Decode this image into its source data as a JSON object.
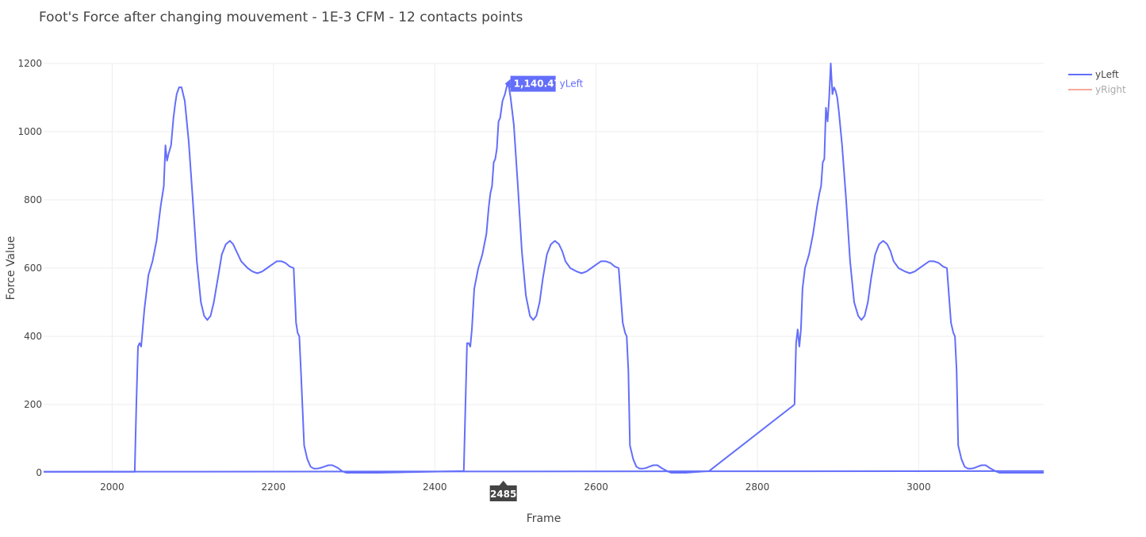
{
  "chart_data": {
    "type": "line",
    "title": "Foot's Force after changing mouvement - 1E-3 CFM - 12 contacts points",
    "xlabel": "Frame",
    "ylabel": "Force Value",
    "xlim": [
      1915,
      3155
    ],
    "ylim": [
      0,
      1200
    ],
    "xticks": [
      2000,
      2200,
      2400,
      2600,
      2800,
      3000
    ],
    "yticks": [
      0,
      200,
      400,
      600,
      800,
      1000,
      1200
    ],
    "ytick_labels": [
      "0",
      "200",
      "400",
      "600",
      "800",
      "1000",
      "1200"
    ],
    "grid": true,
    "legend_position": "top-right",
    "series": [
      {
        "name": "yLeft",
        "color": "#636efa",
        "visible": true,
        "x": [
          1915,
          2028,
          2030,
          2032,
          2034,
          2036,
          2040,
          2045,
          2050,
          2055,
          2058,
          2060,
          2062,
          2064,
          2066,
          2068,
          2070,
          2073,
          2076,
          2078,
          2080,
          2083,
          2086,
          2090,
          2095,
          2100,
          2105,
          2110,
          2114,
          2118,
          2122,
          2126,
          2131,
          2136,
          2141,
          2146,
          2150,
          2154,
          2160,
          2168,
          2174,
          2180,
          2186,
          2192,
          2198,
          2204,
          2210,
          2215,
          2220,
          2225,
          2228,
          2230,
          2232,
          2234,
          2238,
          2242,
          2246,
          2250,
          2254,
          2258,
          2263,
          2268,
          2273,
          2280,
          2285,
          2290,
          2297,
          2303,
          2330,
          2436,
          2438,
          2440,
          2442,
          2444,
          2446,
          2449,
          2454,
          2459,
          2464,
          2467,
          2469,
          2471,
          2473,
          2475,
          2477,
          2479,
          2481,
          2484,
          2487,
          2490,
          2492,
          2494,
          2498,
          2503,
          2508,
          2513,
          2518,
          2522,
          2526,
          2530,
          2534,
          2539,
          2544,
          2549,
          2554,
          2558,
          2562,
          2568,
          2576,
          2582,
          2588,
          2594,
          2600,
          2606,
          2612,
          2618,
          2623,
          2628,
          2633,
          2636,
          2638,
          2640,
          2642,
          2646,
          2650,
          2654,
          2658,
          2662,
          2666,
          2671,
          2676,
          2681,
          2688,
          2693,
          2698,
          2705,
          2711,
          2740,
          2846,
          2848,
          2850,
          2852,
          2854,
          2856,
          2859,
          2864,
          2869,
          2874,
          2877,
          2879,
          2881,
          2883,
          2885,
          2887,
          2889,
          2891,
          2893,
          2895,
          2897,
          2899,
          2901,
          2905,
          2910,
          2915,
          2920,
          2925,
          2929,
          2933,
          2937,
          2941,
          2946,
          2951,
          2956,
          2961,
          2965,
          2969,
          2975,
          2983,
          2989,
          2995,
          3001,
          3007,
          3013,
          3019,
          3025,
          3030,
          3035,
          3040,
          3043,
          3045,
          3047,
          3049,
          3053,
          3057,
          3061,
          3065,
          3069,
          3073,
          3078,
          3083,
          3088,
          3095,
          3100,
          3105,
          3112,
          3118,
          3155
        ],
        "y": [
          3,
          3,
          200,
          370,
          380,
          370,
          480,
          580,
          620,
          680,
          740,
          780,
          810,
          840,
          960,
          915,
          935,
          960,
          1040,
          1080,
          1110,
          1130,
          1130,
          1090,
          970,
          800,
          620,
          500,
          460,
          448,
          460,
          500,
          570,
          640,
          670,
          680,
          670,
          650,
          620,
          600,
          590,
          585,
          590,
          600,
          610,
          620,
          620,
          615,
          605,
          600,
          440,
          410,
          400,
          300,
          80,
          40,
          18,
          12,
          12,
          14,
          18,
          22,
          22,
          14,
          5,
          0,
          0,
          0,
          0,
          5,
          200,
          380,
          380,
          370,
          420,
          540,
          600,
          640,
          700,
          780,
          820,
          840,
          910,
          920,
          950,
          1030,
          1040,
          1090,
          1110,
          1140,
          1130,
          1100,
          1020,
          840,
          650,
          520,
          460,
          448,
          460,
          500,
          570,
          640,
          670,
          680,
          670,
          650,
          620,
          600,
          590,
          585,
          590,
          600,
          610,
          620,
          620,
          615,
          605,
          600,
          440,
          410,
          400,
          300,
          80,
          40,
          18,
          12,
          12,
          14,
          18,
          22,
          22,
          14,
          5,
          0,
          0,
          0,
          0,
          5,
          200,
          380,
          420,
          370,
          420,
          540,
          600,
          640,
          700,
          780,
          820,
          840,
          910,
          920,
          1070,
          1030,
          1100,
          1200,
          1110,
          1130,
          1120,
          1100,
          1060,
          960,
          800,
          620,
          500,
          460,
          448,
          460,
          500,
          570,
          640,
          670,
          680,
          670,
          650,
          620,
          600,
          590,
          585,
          590,
          600,
          610,
          620,
          620,
          615,
          605,
          600,
          440,
          410,
          400,
          300,
          80,
          40,
          18,
          12,
          12,
          14,
          18,
          22,
          22,
          14,
          5,
          0,
          0,
          0,
          0,
          0
        ]
      },
      {
        "name": "yRight",
        "color": "#ef553b",
        "visible": false,
        "x": [],
        "y": []
      },
      {
        "name": "",
        "color": "#636efa",
        "visible": true,
        "x": [
          1915,
          3155
        ],
        "y": [
          3,
          5
        ]
      }
    ],
    "hover": {
      "x": 2485,
      "x_label": "2485",
      "y": 1140.47,
      "value_label": "1,140.47",
      "series_name": "yLeft"
    }
  }
}
